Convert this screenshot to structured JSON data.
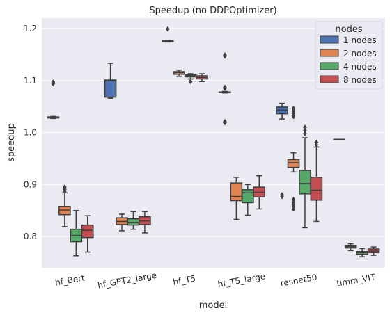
{
  "chart_data": {
    "type": "box",
    "title": "Speedup (no DDPOptimizer)",
    "xlabel": "model",
    "ylabel": "speedup",
    "ylim": [
      0.74,
      1.22
    ],
    "yticks": [
      0.8,
      0.9,
      1.0,
      1.1,
      1.2
    ],
    "ytick_labels": [
      "0.8",
      "0.9",
      "1.0",
      "1.1",
      "1.2"
    ],
    "grid": true,
    "legend": {
      "title": "nodes",
      "placement": "top-right",
      "entries": [
        "1 nodes",
        "2 nodes",
        "4 nodes",
        "8 nodes"
      ]
    },
    "colors": [
      "#4c72b0",
      "#dd8452",
      "#55a868",
      "#c44e52"
    ],
    "categories": [
      "hf_Bert",
      "hf_GPT2_large",
      "hf_T5",
      "hf_T5_large",
      "resnet50",
      "timm_VIT"
    ],
    "series": [
      {
        "name": "1 nodes",
        "boxes": [
          {
            "whislo": 1.027,
            "q1": 1.028,
            "med": 1.029,
            "q3": 1.03,
            "whishi": 1.031,
            "fliers": [
              1.094,
              1.097
            ]
          },
          {
            "whislo": 1.066,
            "q1": 1.068,
            "med": 1.1,
            "q3": 1.101,
            "whishi": 1.133,
            "fliers": []
          },
          {
            "whislo": 1.174,
            "q1": 1.175,
            "med": 1.176,
            "q3": 1.176,
            "whishi": 1.177,
            "fliers": [
              1.199
            ]
          },
          {
            "whislo": 1.076,
            "q1": 1.077,
            "med": 1.077,
            "q3": 1.078,
            "whishi": 1.079,
            "fliers": [
              1.019,
              1.021,
              1.085,
              1.087,
              1.147,
              1.149
            ]
          },
          {
            "whislo": 1.026,
            "q1": 1.036,
            "med": 1.043,
            "q3": 1.049,
            "whishi": 1.056,
            "fliers": [
              0.877,
              0.88
            ]
          },
          {
            "whislo": 0.986,
            "q1": 0.986,
            "med": 0.987,
            "q3": 0.987,
            "whishi": 0.987,
            "fliers": []
          }
        ]
      },
      {
        "name": "2 nodes",
        "boxes": [
          {
            "whislo": 0.819,
            "q1": 0.842,
            "med": 0.851,
            "q3": 0.858,
            "whishi": 0.884,
            "fliers": [
              0.887,
              0.891,
              0.895
            ]
          },
          {
            "whislo": 0.811,
            "q1": 0.823,
            "med": 0.829,
            "q3": 0.836,
            "whishi": 0.843,
            "fliers": []
          },
          {
            "whislo": 1.108,
            "q1": 1.112,
            "med": 1.115,
            "q3": 1.117,
            "whishi": 1.12,
            "fliers": []
          },
          {
            "whislo": 0.833,
            "q1": 0.869,
            "med": 0.877,
            "q3": 0.903,
            "whishi": 0.914,
            "fliers": []
          },
          {
            "whislo": 0.924,
            "q1": 0.933,
            "med": 0.942,
            "q3": 0.948,
            "whishi": 0.961,
            "fliers": [
              0.853,
              0.859,
              0.865,
              0.871,
              1.031,
              1.036,
              1.041,
              1.046
            ]
          },
          {
            "whislo": 0.773,
            "q1": 0.778,
            "med": 0.78,
            "q3": 0.782,
            "whishi": 0.786,
            "fliers": []
          }
        ]
      },
      {
        "name": "4 nodes",
        "boxes": [
          {
            "whislo": 0.763,
            "q1": 0.79,
            "med": 0.802,
            "q3": 0.814,
            "whishi": 0.85,
            "fliers": []
          },
          {
            "whislo": 0.814,
            "q1": 0.822,
            "med": 0.827,
            "q3": 0.834,
            "whishi": 0.848,
            "fliers": []
          },
          {
            "whislo": 1.103,
            "q1": 1.107,
            "med": 1.109,
            "q3": 1.111,
            "whishi": 1.113,
            "fliers": [
              1.098
            ]
          },
          {
            "whislo": 0.841,
            "q1": 0.865,
            "med": 0.884,
            "q3": 0.89,
            "whishi": 0.9,
            "fliers": []
          },
          {
            "whislo": 0.817,
            "q1": 0.882,
            "med": 0.902,
            "q3": 0.927,
            "whishi": 0.99,
            "fliers": [
              0.998,
              1.004,
              1.01
            ]
          },
          {
            "whislo": 0.761,
            "q1": 0.766,
            "med": 0.769,
            "q3": 0.771,
            "whishi": 0.777,
            "fliers": []
          }
        ]
      },
      {
        "name": "8 nodes",
        "boxes": [
          {
            "whislo": 0.77,
            "q1": 0.798,
            "med": 0.812,
            "q3": 0.822,
            "whishi": 0.84,
            "fliers": []
          },
          {
            "whislo": 0.807,
            "q1": 0.823,
            "med": 0.83,
            "q3": 0.838,
            "whishi": 0.848,
            "fliers": []
          },
          {
            "whislo": 1.098,
            "q1": 1.103,
            "med": 1.106,
            "q3": 1.109,
            "whishi": 1.113,
            "fliers": []
          },
          {
            "whislo": 0.853,
            "q1": 0.876,
            "med": 0.885,
            "q3": 0.895,
            "whishi": 0.917,
            "fliers": []
          },
          {
            "whislo": 0.829,
            "q1": 0.87,
            "med": 0.889,
            "q3": 0.914,
            "whishi": 0.972,
            "fliers": [
              0.976,
              0.981
            ]
          },
          {
            "whislo": 0.764,
            "q1": 0.769,
            "med": 0.772,
            "q3": 0.776,
            "whishi": 0.78,
            "fliers": []
          }
        ]
      }
    ]
  }
}
